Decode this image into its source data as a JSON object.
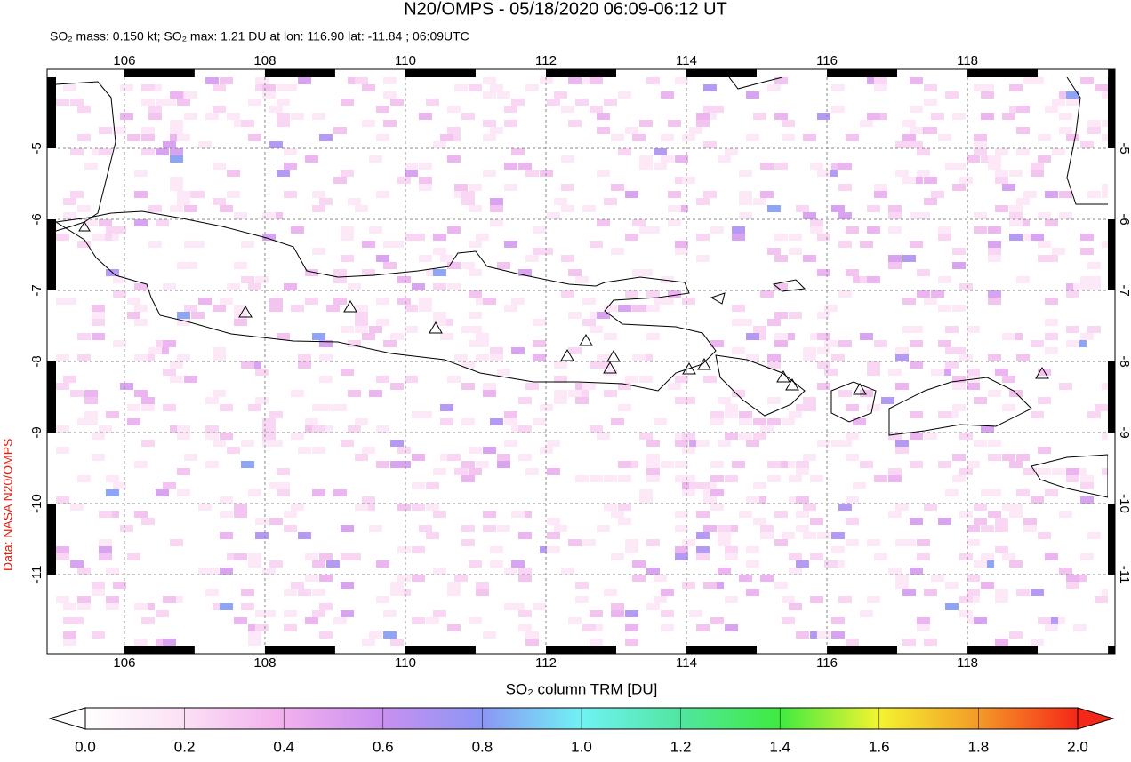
{
  "header": {
    "title": "N20/OMPS - 05/18/2020 06:09-06:12 UT",
    "subtitle": "SO₂ mass: 0.150 kt; SO₂ max: 1.21 DU at lon: 116.90 lat: -11.84 ; 06:09UTC"
  },
  "credit": "Data: NASA N20/OMPS",
  "map": {
    "xlim": [
      104.9,
      120.1
    ],
    "ylim": [
      -12,
      -4
    ],
    "xticks": [
      106,
      108,
      110,
      112,
      114,
      116,
      118
    ],
    "yticks": [
      -5,
      -6,
      -7,
      -8,
      -9,
      -10,
      -11
    ]
  },
  "colorbar": {
    "label": "SO₂ column TRM [DU]",
    "lim": [
      0,
      2
    ],
    "ticks": [
      {
        "value": 0,
        "label": "0.0"
      },
      {
        "value": 0.2,
        "label": "0.2"
      },
      {
        "value": 0.4,
        "label": "0.4"
      },
      {
        "value": 0.6,
        "label": "0.6"
      },
      {
        "value": 0.8,
        "label": "0.8"
      },
      {
        "value": 1,
        "label": "1.0"
      },
      {
        "value": 1.2,
        "label": "1.2"
      },
      {
        "value": 1.4,
        "label": "1.4"
      },
      {
        "value": 1.6,
        "label": "1.6"
      },
      {
        "value": 1.8,
        "label": "1.8"
      },
      {
        "value": 2,
        "label": "2.0"
      }
    ]
  }
}
